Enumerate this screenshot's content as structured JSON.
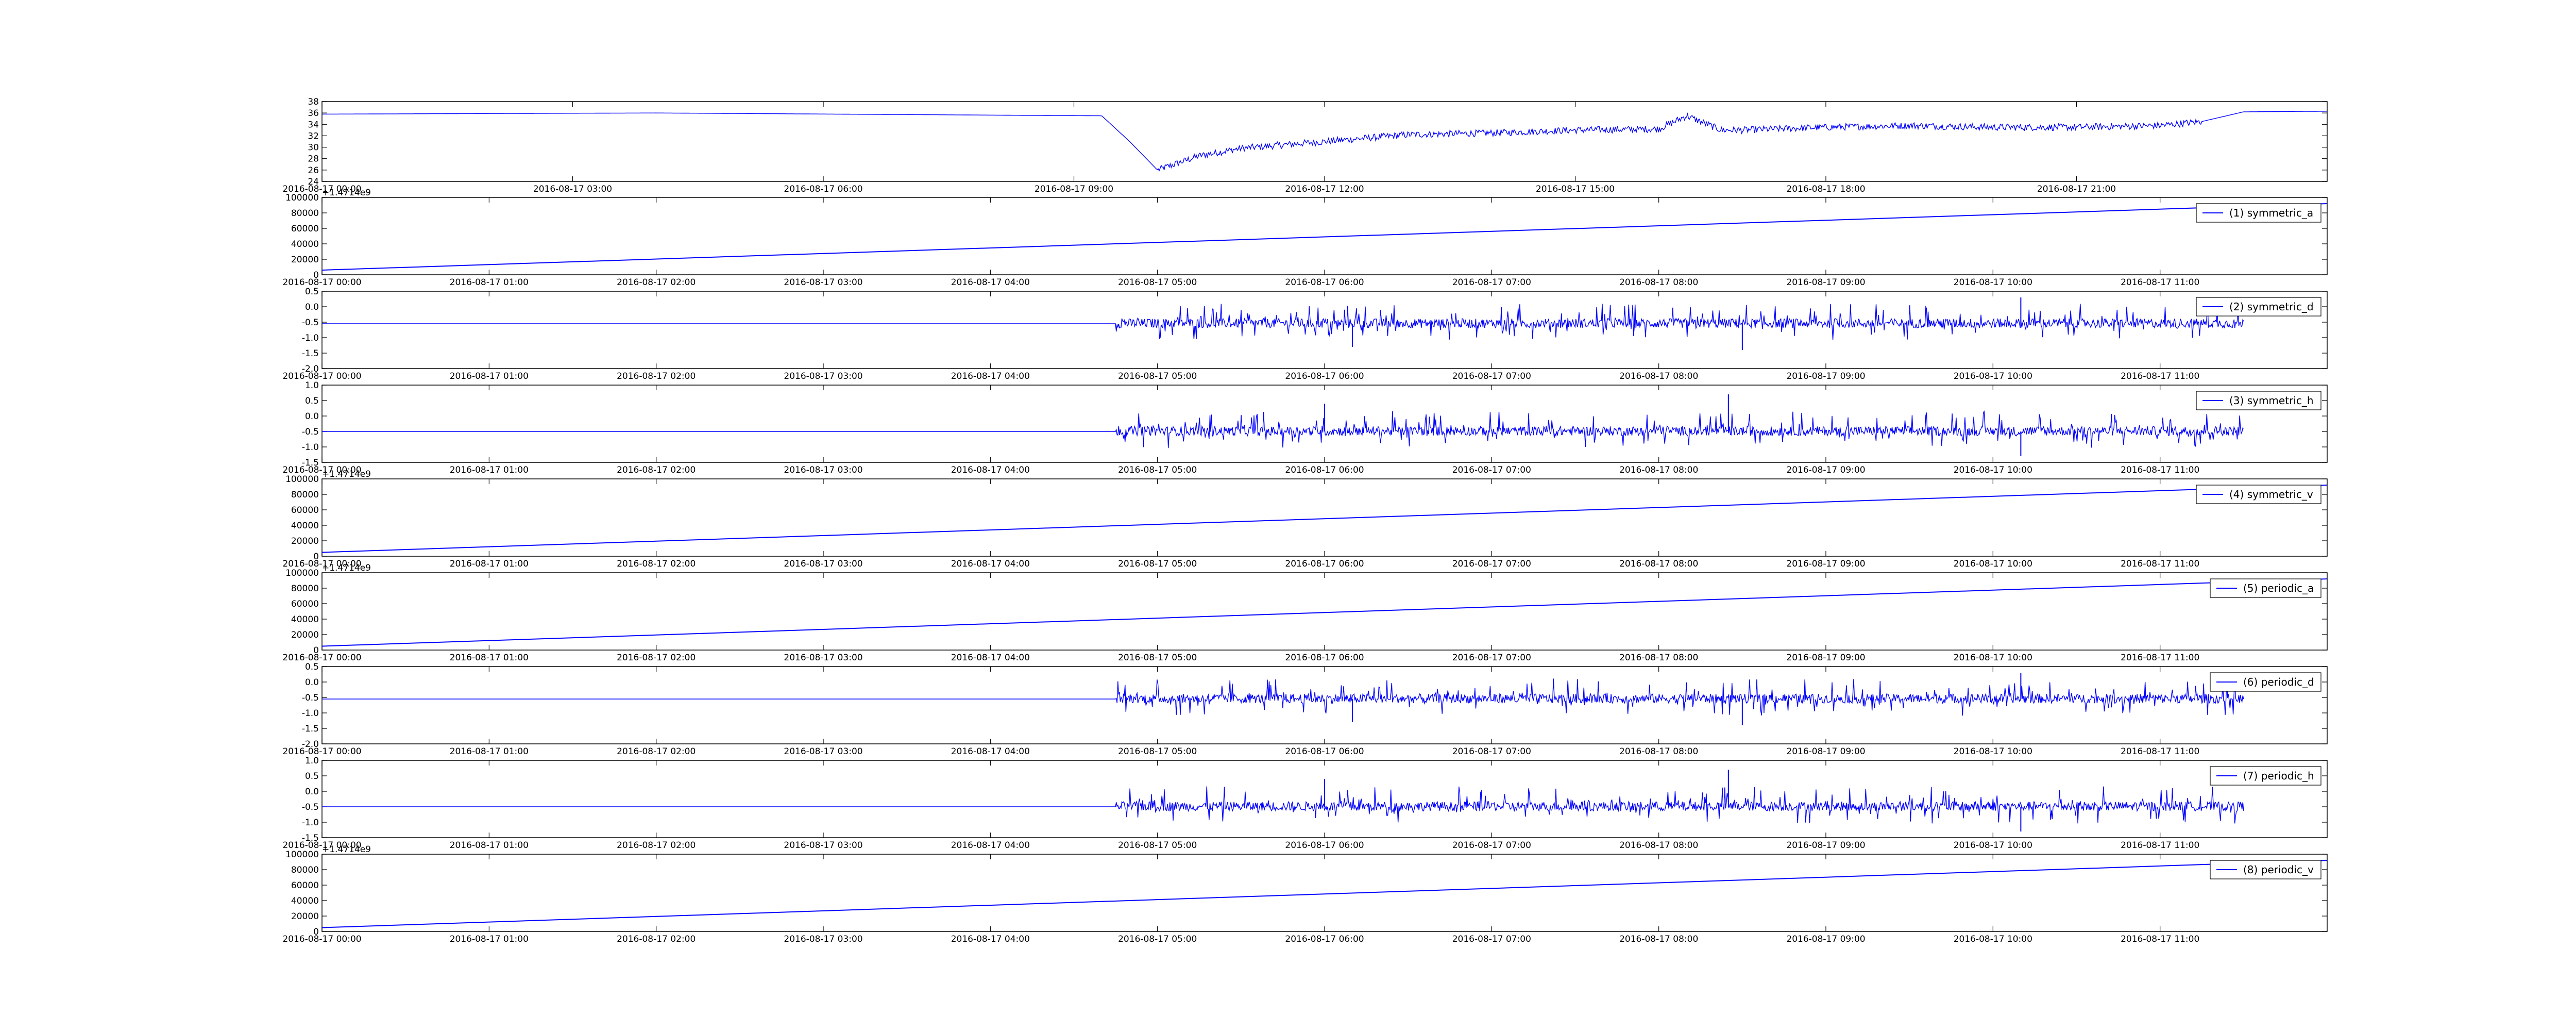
{
  "chart_data": [
    {
      "type": "line",
      "title": "",
      "legend": null,
      "grid": false,
      "color": "#0000ff",
      "ylim": [
        24,
        38
      ],
      "yticks": [
        "38",
        "36",
        "34",
        "32",
        "30",
        "28",
        "26",
        "24"
      ],
      "xlim": [
        "2016-08-17 00:00",
        "2016-08-18 00:00"
      ],
      "xticks": [
        "2016-08-17 00:00",
        "2016-08-17 03:00",
        "2016-08-17 06:00",
        "2016-08-17 09:00",
        "2016-08-17 12:00",
        "2016-08-17 15:00",
        "2016-08-17 18:00",
        "2016-08-17 21:00"
      ],
      "x": [
        "2016-08-17 00:00",
        "2016-08-17 04:00",
        "2016-08-17 09:20",
        "2016-08-17 09:40",
        "2016-08-17 10:00",
        "2016-08-17 10:30",
        "2016-08-17 11:00",
        "2016-08-17 12:00",
        "2016-08-17 13:00",
        "2016-08-17 14:00",
        "2016-08-17 15:00",
        "2016-08-17 16:00",
        "2016-08-17 16:20",
        "2016-08-17 16:45",
        "2016-08-17 17:00",
        "2016-08-17 18:00",
        "2016-08-17 19:00",
        "2016-08-17 20:00",
        "2016-08-17 21:00",
        "2016-08-17 22:00",
        "2016-08-17 22:30",
        "2016-08-17 23:00",
        "2016-08-18 00:00"
      ],
      "y": [
        35.8,
        36.0,
        35.5,
        31.0,
        26.0,
        28.5,
        29.8,
        31.0,
        32.2,
        32.5,
        33.0,
        33.2,
        35.5,
        33.0,
        33.0,
        33.5,
        33.8,
        33.5,
        33.5,
        33.8,
        34.5,
        36.2,
        36.3
      ]
    },
    {
      "type": "line",
      "offset_label": "+1.4714e9",
      "legend": "(1) symmetric_a",
      "color": "#0000ff",
      "ylim": [
        0,
        100000
      ],
      "yticks": [
        "100000",
        "80000",
        "60000",
        "40000",
        "20000",
        "0"
      ],
      "xlim": [
        "2016-08-17 00:00",
        "2016-08-17 12:00"
      ],
      "xticks": [
        "2016-08-17 00:00",
        "2016-08-17 01:00",
        "2016-08-17 02:00",
        "2016-08-17 03:00",
        "2016-08-17 04:00",
        "2016-08-17 05:00",
        "2016-08-17 06:00",
        "2016-08-17 07:00",
        "2016-08-17 08:00",
        "2016-08-17 09:00",
        "2016-08-17 10:00",
        "2016-08-17 11:00"
      ],
      "x": [
        "2016-08-17 00:00",
        "2016-08-17 12:00"
      ],
      "y": [
        6000,
        92000
      ]
    },
    {
      "type": "line",
      "legend": "(2) symmetric_d",
      "color": "#0000ff",
      "ylim": [
        -2.0,
        0.5
      ],
      "yticks": [
        "0.5",
        "0.0",
        "-0.5",
        "-1.0",
        "-1.5",
        "-2.0"
      ],
      "xlim": [
        "2016-08-17 00:00",
        "2016-08-17 12:00"
      ],
      "xticks": [
        "2016-08-17 00:00",
        "2016-08-17 01:00",
        "2016-08-17 02:00",
        "2016-08-17 03:00",
        "2016-08-17 04:00",
        "2016-08-17 05:00",
        "2016-08-17 06:00",
        "2016-08-17 07:00",
        "2016-08-17 08:00",
        "2016-08-17 09:00",
        "2016-08-17 10:00",
        "2016-08-17 11:00"
      ],
      "x": [
        "2016-08-17 00:00",
        "2016-08-17 04:45",
        "2016-08-17 05:10",
        "2016-08-17 06:00",
        "2016-08-17 06:10",
        "2016-08-17 07:00",
        "2016-08-17 08:25",
        "2016-08-17 08:30",
        "2016-08-17 09:30",
        "2016-08-17 10:00",
        "2016-08-17 10:10",
        "2016-08-17 11:30"
      ],
      "y": [
        -0.55,
        -0.55,
        -0.55,
        -0.55,
        -1.3,
        -0.55,
        -0.55,
        -1.4,
        -0.55,
        -0.55,
        0.3,
        -0.55
      ]
    },
    {
      "type": "line",
      "legend": "(3) symmetric_h",
      "color": "#0000ff",
      "ylim": [
        -1.5,
        1.0
      ],
      "yticks": [
        "1.0",
        "0.5",
        "0.0",
        "-0.5",
        "-1.0",
        "-1.5"
      ],
      "xlim": [
        "2016-08-17 00:00",
        "2016-08-17 12:00"
      ],
      "xticks": [
        "2016-08-17 00:00",
        "2016-08-17 01:00",
        "2016-08-17 02:00",
        "2016-08-17 03:00",
        "2016-08-17 04:00",
        "2016-08-17 05:00",
        "2016-08-17 06:00",
        "2016-08-17 07:00",
        "2016-08-17 08:00",
        "2016-08-17 09:00",
        "2016-08-17 10:00",
        "2016-08-17 11:00"
      ],
      "x": [
        "2016-08-17 00:00",
        "2016-08-17 04:45",
        "2016-08-17 05:10",
        "2016-08-17 06:00",
        "2016-08-17 06:10",
        "2016-08-17 07:00",
        "2016-08-17 08:25",
        "2016-08-17 08:30",
        "2016-08-17 09:30",
        "2016-08-17 10:10",
        "2016-08-17 11:30"
      ],
      "y": [
        -0.5,
        -0.5,
        -0.5,
        0.4,
        -0.5,
        -0.5,
        0.7,
        -0.5,
        -0.5,
        -1.3,
        -0.5
      ]
    },
    {
      "type": "line",
      "offset_label": "+1.4714e9",
      "legend": "(4) symmetric_v",
      "color": "#0000ff",
      "ylim": [
        0,
        100000
      ],
      "yticks": [
        "100000",
        "80000",
        "60000",
        "40000",
        "20000",
        "0"
      ],
      "xlim": [
        "2016-08-17 00:00",
        "2016-08-17 12:00"
      ],
      "xticks": [
        "2016-08-17 00:00",
        "2016-08-17 01:00",
        "2016-08-17 02:00",
        "2016-08-17 03:00",
        "2016-08-17 04:00",
        "2016-08-17 05:00",
        "2016-08-17 06:00",
        "2016-08-17 07:00",
        "2016-08-17 08:00",
        "2016-08-17 09:00",
        "2016-08-17 10:00",
        "2016-08-17 11:00"
      ],
      "x": [
        "2016-08-17 00:00",
        "2016-08-17 12:00"
      ],
      "y": [
        5000,
        92000
      ]
    },
    {
      "type": "line",
      "offset_label": "+1.4714e9",
      "legend": "(5) periodic_a",
      "color": "#0000ff",
      "ylim": [
        0,
        100000
      ],
      "yticks": [
        "100000",
        "80000",
        "60000",
        "40000",
        "20000",
        "0"
      ],
      "xlim": [
        "2016-08-17 00:00",
        "2016-08-17 12:00"
      ],
      "xticks": [
        "2016-08-17 00:00",
        "2016-08-17 01:00",
        "2016-08-17 02:00",
        "2016-08-17 03:00",
        "2016-08-17 04:00",
        "2016-08-17 05:00",
        "2016-08-17 06:00",
        "2016-08-17 07:00",
        "2016-08-17 08:00",
        "2016-08-17 09:00",
        "2016-08-17 10:00",
        "2016-08-17 11:00"
      ],
      "x": [
        "2016-08-17 00:00",
        "2016-08-17 12:00"
      ],
      "y": [
        5000,
        92000
      ]
    },
    {
      "type": "line",
      "legend": "(6) periodic_d",
      "color": "#0000ff",
      "ylim": [
        -2.0,
        0.5
      ],
      "yticks": [
        "0.5",
        "0.0",
        "-0.5",
        "-1.0",
        "-1.5",
        "-2.0"
      ],
      "xlim": [
        "2016-08-17 00:00",
        "2016-08-17 12:00"
      ],
      "xticks": [
        "2016-08-17 00:00",
        "2016-08-17 01:00",
        "2016-08-17 02:00",
        "2016-08-17 03:00",
        "2016-08-17 04:00",
        "2016-08-17 05:00",
        "2016-08-17 06:00",
        "2016-08-17 07:00",
        "2016-08-17 08:00",
        "2016-08-17 09:00",
        "2016-08-17 10:00",
        "2016-08-17 11:00"
      ],
      "x": [
        "2016-08-17 00:00",
        "2016-08-17 04:45",
        "2016-08-17 05:10",
        "2016-08-17 06:00",
        "2016-08-17 06:10",
        "2016-08-17 07:00",
        "2016-08-17 08:25",
        "2016-08-17 08:30",
        "2016-08-17 09:30",
        "2016-08-17 10:00",
        "2016-08-17 10:10",
        "2016-08-17 11:30"
      ],
      "y": [
        -0.55,
        -0.55,
        -0.55,
        -0.55,
        -1.3,
        -0.55,
        -0.55,
        -1.4,
        -0.55,
        -0.55,
        0.3,
        -0.55
      ]
    },
    {
      "type": "line",
      "legend": "(7) periodic_h",
      "color": "#0000ff",
      "ylim": [
        -1.5,
        1.0
      ],
      "yticks": [
        "1.0",
        "0.5",
        "0.0",
        "-0.5",
        "-1.0",
        "-1.5"
      ],
      "xlim": [
        "2016-08-17 00:00",
        "2016-08-17 12:00"
      ],
      "xticks": [
        "2016-08-17 00:00",
        "2016-08-17 01:00",
        "2016-08-17 02:00",
        "2016-08-17 03:00",
        "2016-08-17 04:00",
        "2016-08-17 05:00",
        "2016-08-17 06:00",
        "2016-08-17 07:00",
        "2016-08-17 08:00",
        "2016-08-17 09:00",
        "2016-08-17 10:00",
        "2016-08-17 11:00"
      ],
      "x": [
        "2016-08-17 00:00",
        "2016-08-17 04:45",
        "2016-08-17 05:10",
        "2016-08-17 06:00",
        "2016-08-17 06:10",
        "2016-08-17 07:00",
        "2016-08-17 08:25",
        "2016-08-17 08:30",
        "2016-08-17 09:30",
        "2016-08-17 10:10",
        "2016-08-17 11:30"
      ],
      "y": [
        -0.5,
        -0.5,
        -0.5,
        0.4,
        -0.5,
        -0.5,
        0.7,
        -0.5,
        -0.5,
        -1.3,
        -0.5
      ]
    },
    {
      "type": "line",
      "offset_label": "+1.4714e9",
      "legend": "(8) periodic_v",
      "color": "#0000ff",
      "ylim": [
        0,
        100000
      ],
      "yticks": [
        "100000",
        "80000",
        "60000",
        "40000",
        "20000",
        "0"
      ],
      "xlim": [
        "2016-08-17 00:00",
        "2016-08-17 12:00"
      ],
      "xticks": [
        "2016-08-17 00:00",
        "2016-08-17 01:00",
        "2016-08-17 02:00",
        "2016-08-17 03:00",
        "2016-08-17 04:00",
        "2016-08-17 05:00",
        "2016-08-17 06:00",
        "2016-08-17 07:00",
        "2016-08-17 08:00",
        "2016-08-17 09:00",
        "2016-08-17 10:00",
        "2016-08-17 11:00"
      ],
      "x": [
        "2016-08-17 00:00",
        "2016-08-17 12:00"
      ],
      "y": [
        5000,
        92000
      ]
    }
  ]
}
